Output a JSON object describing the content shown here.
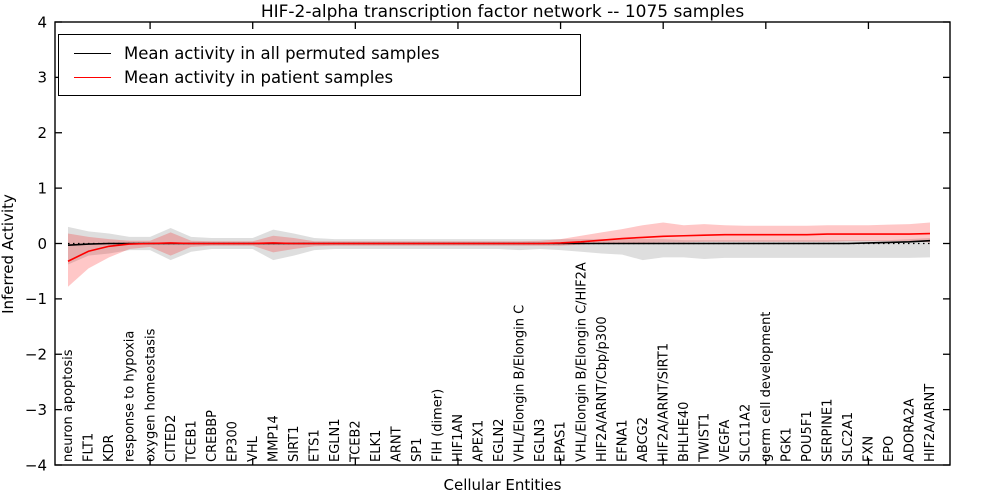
{
  "chart_data": {
    "type": "line",
    "title": "HIF-2-alpha transcription factor network -- 1075 samples",
    "xlabel": "Cellular Entities",
    "ylabel": "Inferred Activity",
    "ylim": [
      -4,
      4
    ],
    "ytick_values": [
      4,
      3,
      2,
      1,
      0,
      -1,
      -2,
      -3,
      -4
    ],
    "ytick_labels": [
      "4",
      "3",
      "2",
      "1",
      "0",
      "−1",
      "−2",
      "−3",
      "−4"
    ],
    "grid": false,
    "zero_line": true,
    "legend_position": "upper-left",
    "entities": [
      "neuron apoptosis",
      "FLT1",
      "KDR",
      "response to hypoxia",
      "oxygen homeostasis",
      "CITED2",
      "TCEB1",
      "CREBBP",
      "EP300",
      "VHL",
      "MMP14",
      "SIRT1",
      "ETS1",
      "EGLN1",
      "TCEB2",
      "ELK1",
      "ARNT",
      "SP1",
      "FIH (dimer)",
      "HIF1AN",
      "APEX1",
      "EGLN2",
      "VHL/Elongin B/Elongin C",
      "EGLN3",
      "EPAS1",
      "VHL/Elongin B/Elongin C/HIF2A",
      "HIF2A/ARNT/Cbp/p300",
      "EFNA1",
      "ABCG2",
      "HIF2A/ARNT/SIRT1",
      "BHLHE40",
      "TWIST1",
      "VEGFA",
      "SLC11A2",
      "germ cell development",
      "PGK1",
      "POU5F1",
      "SERPINE1",
      "SLC2A1",
      "FXN",
      "EPO",
      "ADORA2A",
      "HIF2A/ARNT"
    ],
    "series": [
      {
        "name": "Mean activity in all permuted samples",
        "color": "#000000",
        "band_color": "rgba(0,0,0,0.13)",
        "values": [
          -0.03,
          -0.01,
          0,
          0,
          0,
          0,
          0,
          0,
          0,
          0,
          0,
          0,
          0,
          0,
          0,
          0,
          0,
          0,
          0,
          0,
          0,
          0,
          0,
          0,
          0,
          0,
          0,
          0,
          0,
          0,
          0,
          0,
          0,
          0,
          0,
          0,
          0,
          0,
          0,
          0.01,
          0.02,
          0.03,
          0.05
        ],
        "band_low": [
          -0.38,
          -0.22,
          -0.18,
          -0.12,
          -0.12,
          -0.3,
          -0.15,
          -0.1,
          -0.1,
          -0.1,
          -0.3,
          -0.22,
          -0.12,
          -0.1,
          -0.1,
          -0.1,
          -0.1,
          -0.1,
          -0.1,
          -0.1,
          -0.1,
          -0.1,
          -0.12,
          -0.1,
          -0.12,
          -0.15,
          -0.18,
          -0.2,
          -0.3,
          -0.25,
          -0.25,
          -0.28,
          -0.26,
          -0.26,
          -0.26,
          -0.26,
          -0.26,
          -0.26,
          -0.26,
          -0.26,
          -0.26,
          -0.26,
          -0.25
        ],
        "band_high": [
          0.3,
          0.22,
          0.18,
          0.12,
          0.12,
          0.28,
          0.12,
          0.1,
          0.1,
          0.1,
          0.25,
          0.18,
          0.1,
          0.08,
          0.08,
          0.08,
          0.08,
          0.08,
          0.08,
          0.08,
          0.08,
          0.08,
          0.08,
          0.08,
          0.08,
          0.08,
          0.08,
          0.08,
          0.08,
          0.08,
          0.06,
          0.06,
          0.06,
          0.06,
          0.06,
          0.06,
          0.06,
          0.06,
          0.06,
          0.06,
          0.06,
          0.08,
          0.1
        ]
      },
      {
        "name": "Mean activity in patient samples",
        "color": "#ff0000",
        "band_color": "rgba(255,0,0,0.22)",
        "values": [
          -0.32,
          -0.14,
          -0.05,
          -0.01,
          0,
          0.01,
          0,
          0,
          0,
          0,
          0.01,
          0,
          0,
          0,
          0,
          0,
          0,
          0,
          0,
          0,
          0,
          0,
          0,
          0,
          0.01,
          0.03,
          0.06,
          0.09,
          0.11,
          0.13,
          0.14,
          0.15,
          0.16,
          0.16,
          0.16,
          0.16,
          0.16,
          0.17,
          0.17,
          0.17,
          0.17,
          0.17,
          0.18
        ],
        "band_low": [
          -0.78,
          -0.45,
          -0.25,
          -0.1,
          -0.06,
          -0.22,
          -0.06,
          -0.04,
          -0.04,
          -0.04,
          -0.16,
          -0.1,
          -0.05,
          -0.04,
          -0.04,
          -0.04,
          -0.04,
          -0.04,
          -0.04,
          -0.04,
          -0.04,
          -0.04,
          -0.04,
          -0.04,
          -0.04,
          -0.02,
          0.0,
          0.0,
          0.01,
          0.02,
          0.02,
          0.03,
          0.03,
          0.03,
          0.03,
          0.03,
          0.03,
          0.03,
          0.04,
          0.04,
          0.04,
          0.04,
          0.02
        ],
        "band_high": [
          0.18,
          0.12,
          0.08,
          0.05,
          0.05,
          0.2,
          0.05,
          0.04,
          0.04,
          0.04,
          0.14,
          0.1,
          0.04,
          0.04,
          0.04,
          0.04,
          0.04,
          0.04,
          0.04,
          0.04,
          0.04,
          0.04,
          0.04,
          0.05,
          0.08,
          0.14,
          0.2,
          0.26,
          0.33,
          0.38,
          0.33,
          0.35,
          0.33,
          0.32,
          0.32,
          0.32,
          0.32,
          0.33,
          0.33,
          0.33,
          0.34,
          0.35,
          0.38
        ]
      }
    ]
  }
}
